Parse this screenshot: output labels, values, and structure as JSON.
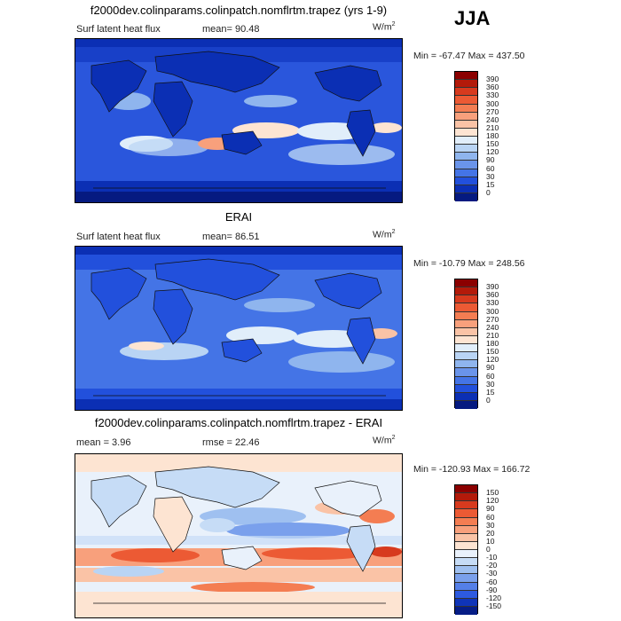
{
  "season": "JJA",
  "panels": [
    {
      "title": "f2000dev.colinparams.colinpatch.nomflrtm.trapez (yrs 1-9)",
      "variable": "Surf latent heat flux",
      "stat": "mean=  90.48",
      "rmse": "",
      "units_base": "W/m",
      "units_exp": "2",
      "minmax": "Min = -67.47 Max = 437.50",
      "colorbar": [
        "390",
        "360",
        "330",
        "300",
        "270",
        "240",
        "210",
        "180",
        "150",
        "120",
        "90",
        "60",
        "30",
        "15",
        "0"
      ],
      "colors": [
        "#8b0000",
        "#b31a0a",
        "#d73a1e",
        "#ec5a34",
        "#f47d52",
        "#f8a07c",
        "#fac3a6",
        "#fde4d2",
        "#e1eefa",
        "#b9d4f4",
        "#8fb5ee",
        "#6a94ea",
        "#4474e6",
        "#2250dc",
        "#0b2fb4",
        "#051a80"
      ]
    },
    {
      "title": "ERAI",
      "variable": "Surf latent heat flux",
      "stat": "mean=  86.51",
      "rmse": "",
      "units_base": "W/m",
      "units_exp": "2",
      "minmax": "Min = -10.79 Max = 248.56",
      "colorbar": [
        "390",
        "360",
        "330",
        "300",
        "270",
        "240",
        "210",
        "180",
        "150",
        "120",
        "90",
        "60",
        "30",
        "15",
        "0"
      ],
      "colors": [
        "#8b0000",
        "#b31a0a",
        "#d73a1e",
        "#ec5a34",
        "#f47d52",
        "#f8a07c",
        "#fac3a6",
        "#fde4d2",
        "#e1eefa",
        "#b9d4f4",
        "#8fb5ee",
        "#6a94ea",
        "#4474e6",
        "#2250dc",
        "#0b2fb4",
        "#051a80"
      ]
    },
    {
      "title": "f2000dev.colinparams.colinpatch.nomflrtm.trapez - ERAI",
      "variable": "",
      "stat": "mean =   3.96",
      "rmse": "rmse =   22.46",
      "units_base": "W/m",
      "units_exp": "2",
      "minmax": "Min = -120.93 Max = 166.72",
      "colorbar": [
        "150",
        "120",
        "90",
        "60",
        "30",
        "20",
        "10",
        "0",
        "-10",
        "-20",
        "-30",
        "-60",
        "-90",
        "-120",
        "-150"
      ],
      "colors": [
        "#8b0000",
        "#b31a0a",
        "#d73a1e",
        "#ec5a34",
        "#f47d52",
        "#f8a07c",
        "#fac3a6",
        "#fde4d2",
        "#e9f1fb",
        "#c6dcf6",
        "#9fc0f0",
        "#7aa0ec",
        "#547fe8",
        "#2d5ae0",
        "#0f34b8",
        "#061d86"
      ]
    }
  ]
}
